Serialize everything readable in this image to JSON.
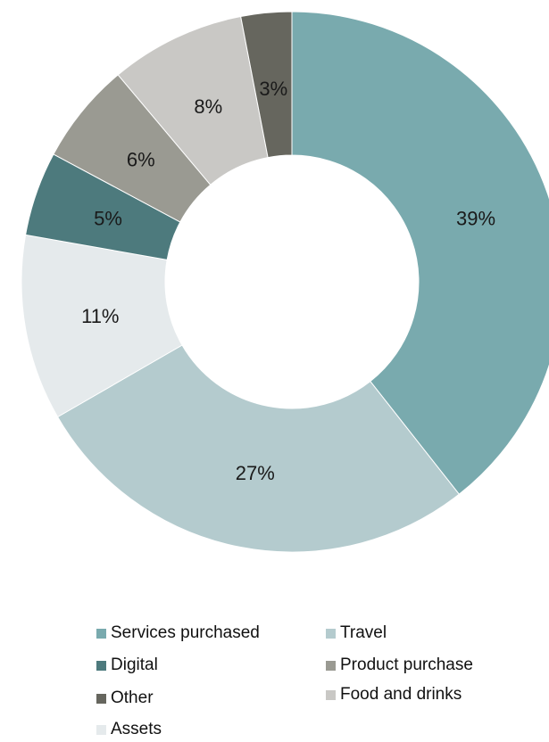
{
  "chart_data": {
    "type": "pie",
    "donut": true,
    "title": "",
    "categories": [
      "Services purchased",
      "Travel",
      "Assets",
      "Digital",
      "Product purchase",
      "Food and drinks",
      "Other"
    ],
    "values": [
      39,
      27,
      11,
      5,
      6,
      8,
      3
    ],
    "labels": [
      "39%",
      "27%",
      "11%",
      "5%",
      "6%",
      "8%",
      "3%"
    ],
    "colors": [
      "#79aaae",
      "#b4cbce",
      "#e5eaec",
      "#4d7a7d",
      "#9a9a92",
      "#c9c8c5",
      "#66665e"
    ],
    "label_colors": [
      "#1a1a1a",
      "#1a1a1a",
      "#1a1a1a",
      "#1a1a1a",
      "#1a1a1a",
      "#1a1a1a",
      "#1a1a1a"
    ],
    "legend": [
      {
        "label": "Services purchased",
        "color": "#79aaae"
      },
      {
        "label": "Travel",
        "color": "#b4cbce"
      },
      {
        "label": "Digital",
        "color": "#4d7a7d"
      },
      {
        "label": "Product purchase",
        "color": "#9a9a92"
      },
      {
        "label": "Other",
        "color": "#66665e"
      },
      {
        "label": "Food and drinks",
        "color": "#c9c8c5"
      },
      {
        "label": "Assets",
        "color": "#e5eaec"
      }
    ],
    "legend_placement": "bottom"
  }
}
